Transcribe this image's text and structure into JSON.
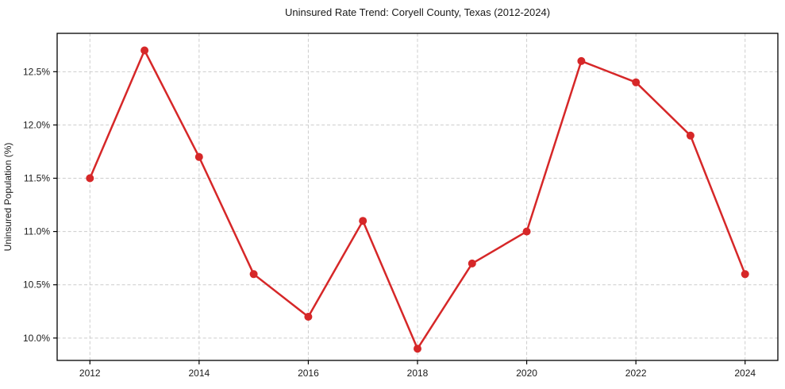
{
  "chart_data": {
    "type": "line",
    "title": "Uninsured Rate Trend: Coryell County, Texas (2012-2024)",
    "xlabel": "",
    "ylabel": "Uninsured Population (%)",
    "x": [
      2012,
      2013,
      2014,
      2015,
      2016,
      2017,
      2018,
      2019,
      2020,
      2021,
      2022,
      2023,
      2024
    ],
    "values": [
      11.5,
      12.7,
      11.7,
      10.6,
      10.2,
      11.1,
      9.9,
      10.7,
      11.0,
      12.6,
      12.4,
      11.9,
      10.6
    ],
    "xticks": [
      2012,
      2014,
      2016,
      2018,
      2020,
      2022,
      2024
    ],
    "yticks": [
      10.0,
      10.5,
      11.0,
      11.5,
      12.0,
      12.5
    ],
    "xlim": [
      2011.4,
      2024.6
    ],
    "ylim": [
      9.79,
      12.86
    ],
    "grid": true,
    "grid_style": "dashed",
    "legend": "none",
    "marker": "circle"
  },
  "colors": {
    "line": "#d62728",
    "marker": "#d62728",
    "grid": "#cccccc",
    "spine": "#000000",
    "text": "#1a1a1a",
    "background": "#ffffff"
  }
}
